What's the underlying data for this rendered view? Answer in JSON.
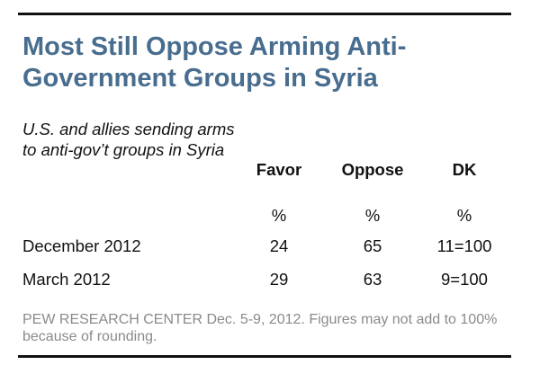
{
  "chart_data": {
    "type": "table",
    "title": "Most Still Oppose Arming Anti-Government Groups in Syria",
    "row_header": "U.S. and allies sending arms to anti-gov’t groups in Syria",
    "columns": [
      "Favor",
      "Oppose",
      "DK"
    ],
    "unit_row": [
      "%",
      "%",
      "%"
    ],
    "rows": [
      {
        "label": "December 2012",
        "favor": "24",
        "oppose": "65",
        "dk": "11=100"
      },
      {
        "label": "March 2012",
        "favor": "29",
        "oppose": "63",
        "dk": "9=100"
      }
    ],
    "source": "PEW RESEARCH CENTER Dec. 5-9, 2012. Figures may not add to 100% because of rounding.",
    "colors": {
      "title": "#486d8e",
      "text": "#111111",
      "source": "#8a8a8a",
      "rules": "#111111"
    }
  }
}
